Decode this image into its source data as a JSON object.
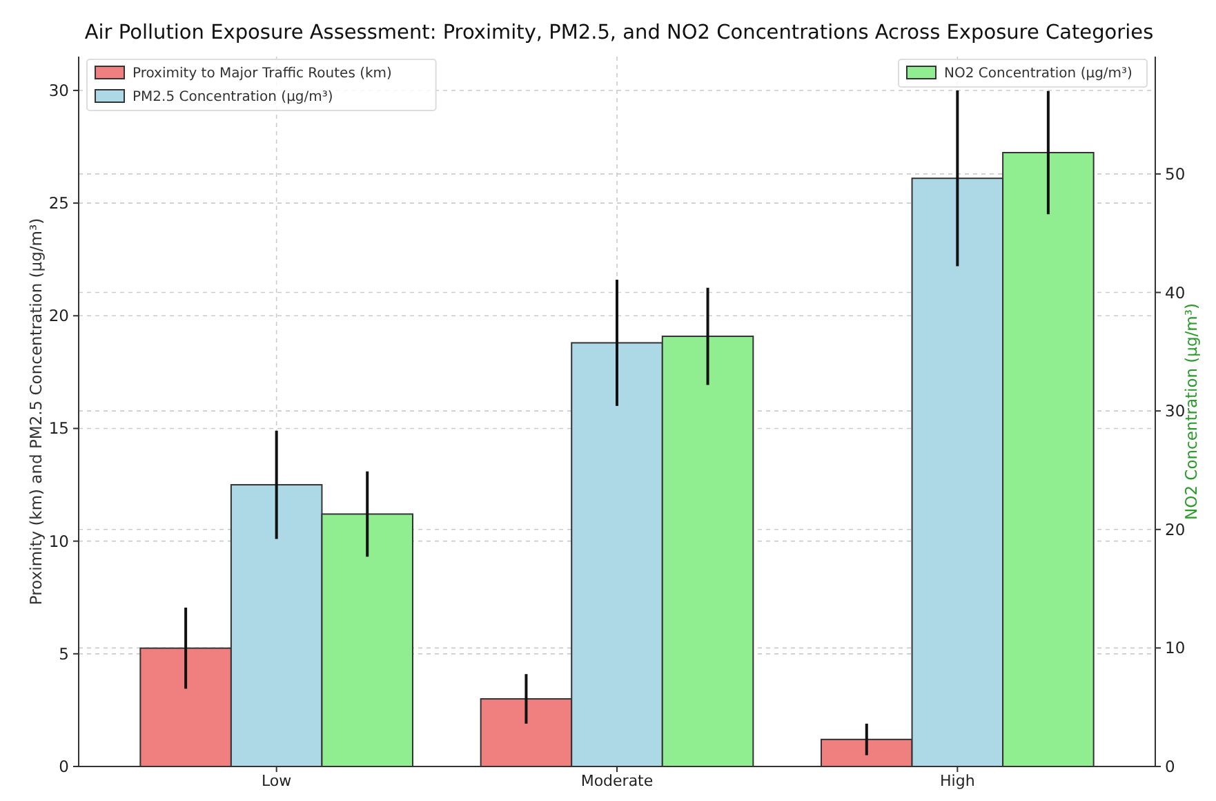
{
  "chart_data": {
    "type": "bar",
    "title": "Air Pollution Exposure Assessment: Proximity, PM2.5, and NO2 Concentrations Across Exposure Categories",
    "ylabel": "Proximity (km) and PM2.5 Concentration (µg/m³)",
    "y2label": "NO2 Concentration (µg/m³)",
    "categories": [
      "Low",
      "Moderate",
      "High"
    ],
    "series": [
      {
        "name": "Proximity to Major Traffic Routes (km)",
        "color": "#f08080",
        "values": [
          5.25,
          3.0,
          1.2
        ],
        "errors": [
          1.8,
          1.1,
          0.7
        ]
      },
      {
        "name": "PM2.5 Concentration (µg/m³)",
        "color": "#add8e6",
        "values": [
          12.5,
          18.8,
          26.1
        ],
        "errors": [
          2.4,
          2.8,
          3.9
        ]
      },
      {
        "name": "NO2 Concentration (µg/m³)",
        "color": "#90ee90",
        "values": [
          21.3,
          36.3,
          51.8
        ],
        "errors": [
          3.6,
          4.1,
          5.2
        ],
        "axis": "y2"
      }
    ],
    "ylim": [
      0,
      31.5
    ],
    "yticks": [
      0,
      5,
      10,
      15,
      20,
      25,
      30
    ],
    "y2lim": [
      0,
      59.9
    ],
    "y2ticks": [
      0,
      10,
      20,
      30,
      40,
      50
    ],
    "grid": true,
    "legend": "top"
  }
}
